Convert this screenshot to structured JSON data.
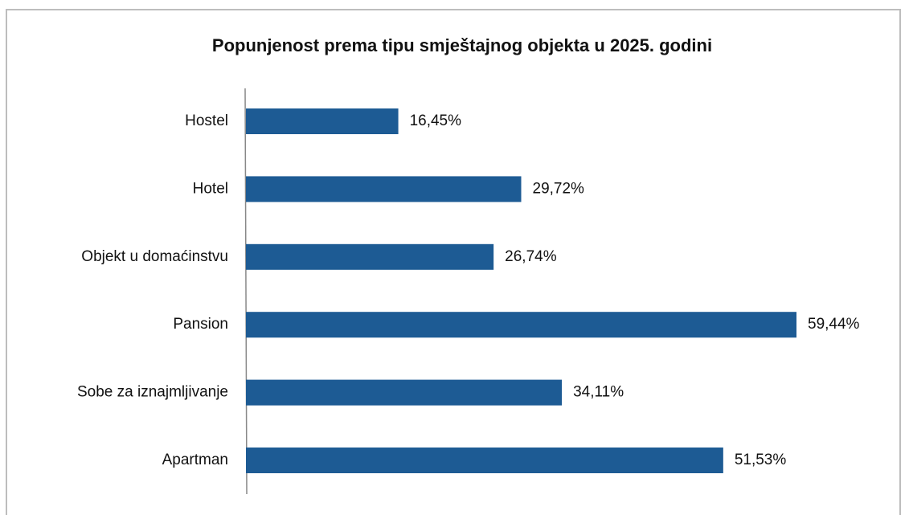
{
  "chart_data": {
    "type": "bar",
    "orientation": "horizontal",
    "title": "Popunjenost prema tipu smještajnog objekta u 2025. godini",
    "categories": [
      "Hostel",
      "Hotel",
      "Objekt u domaćinstvu",
      "Pansion",
      "Sobe za iznajmljivanje",
      "Apartman"
    ],
    "values": [
      16.45,
      29.72,
      26.74,
      59.44,
      34.11,
      51.53
    ],
    "value_labels": [
      "16,45%",
      "29,72%",
      "26,74%",
      "59,44%",
      "34,11%",
      "51,53%"
    ],
    "color": "#1d5b94"
  }
}
